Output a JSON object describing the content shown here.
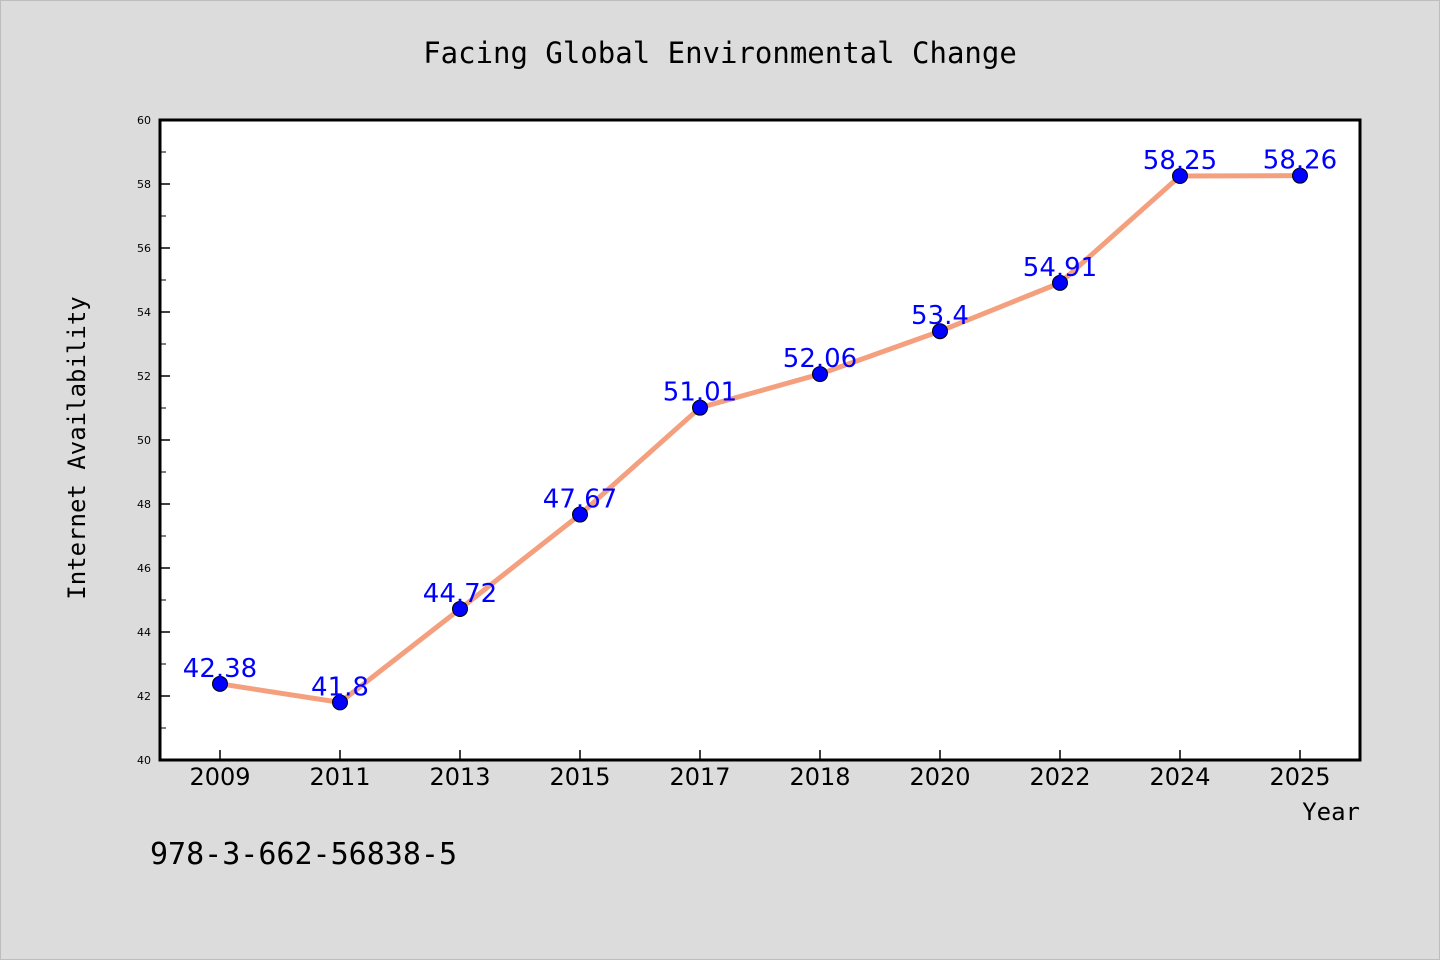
{
  "chart_data": {
    "type": "line",
    "title": "Facing Global Environmental Change",
    "xlabel": "Year",
    "ylabel": "Internet Availability",
    "categories": [
      "2009",
      "2011",
      "2013",
      "2015",
      "2017",
      "2018",
      "2020",
      "2022",
      "2024",
      "2025"
    ],
    "series": [
      {
        "values": [
          42.38,
          41.8,
          44.72,
          47.67,
          51.01,
          52.06,
          53.4,
          54.91,
          58.25,
          58.26
        ],
        "labels": [
          "42.38",
          "41.8",
          "44.72",
          "47.67",
          "51.01",
          "52.06",
          "53.4",
          "54.91",
          "58.25",
          "58.26"
        ],
        "line_color": "#f4a07e",
        "marker_color": "#0000ff",
        "label_color": "#0000ff"
      }
    ],
    "ylim": [
      40,
      60
    ],
    "yticks": [
      "40",
      "42",
      "44",
      "46",
      "48",
      "50",
      "52",
      "54",
      "56",
      "58",
      "60"
    ],
    "grid": false,
    "legend": "none"
  },
  "footnote": "978-3-662-56838-5",
  "colors": {
    "background": "#dcdcdc",
    "plot_background": "#ffffff",
    "axis": "#000000"
  }
}
